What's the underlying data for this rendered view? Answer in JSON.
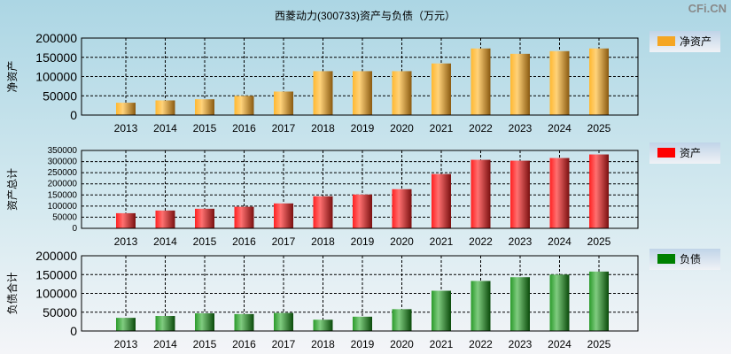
{
  "title": "西菱动力(300733)资产与负债（万元）",
  "watermark": "CFi.CN",
  "chart_data": [
    {
      "type": "bar",
      "ylabel": "净资产",
      "legend": "净资产",
      "color": "#f5a623",
      "ylim": [
        0,
        200000
      ],
      "yticks": [
        0,
        50000,
        100000,
        150000,
        200000
      ],
      "categories": [
        "2013",
        "2014",
        "2015",
        "2016",
        "2017",
        "2018",
        "2019",
        "2020",
        "2021",
        "2022",
        "2023",
        "2024",
        "2025"
      ],
      "values": [
        32000,
        38000,
        41000,
        50000,
        61000,
        114000,
        114000,
        114000,
        134000,
        173000,
        159000,
        166000,
        173000
      ]
    },
    {
      "type": "bar",
      "ylabel": "资产总计",
      "legend": "资产",
      "color": "#ff0000",
      "ylim": [
        0,
        350000
      ],
      "yticks": [
        0,
        50000,
        100000,
        150000,
        200000,
        250000,
        300000,
        350000
      ],
      "categories": [
        "2013",
        "2014",
        "2015",
        "2016",
        "2017",
        "2018",
        "2019",
        "2020",
        "2021",
        "2022",
        "2023",
        "2024",
        "2025"
      ],
      "values": [
        68000,
        80000,
        88000,
        97000,
        112000,
        144000,
        152000,
        176000,
        244000,
        308000,
        304000,
        316000,
        332000
      ]
    },
    {
      "type": "bar",
      "ylabel": "负债合计",
      "legend": "负债",
      "color": "#008000",
      "ylim": [
        0,
        200000
      ],
      "yticks": [
        0,
        50000,
        100000,
        150000,
        200000
      ],
      "categories": [
        "2013",
        "2014",
        "2015",
        "2016",
        "2017",
        "2018",
        "2019",
        "2020",
        "2021",
        "2022",
        "2023",
        "2024",
        "2025"
      ],
      "values": [
        35000,
        40000,
        47000,
        45000,
        48000,
        30000,
        38000,
        58000,
        107000,
        133000,
        143000,
        150000,
        158000
      ]
    }
  ]
}
